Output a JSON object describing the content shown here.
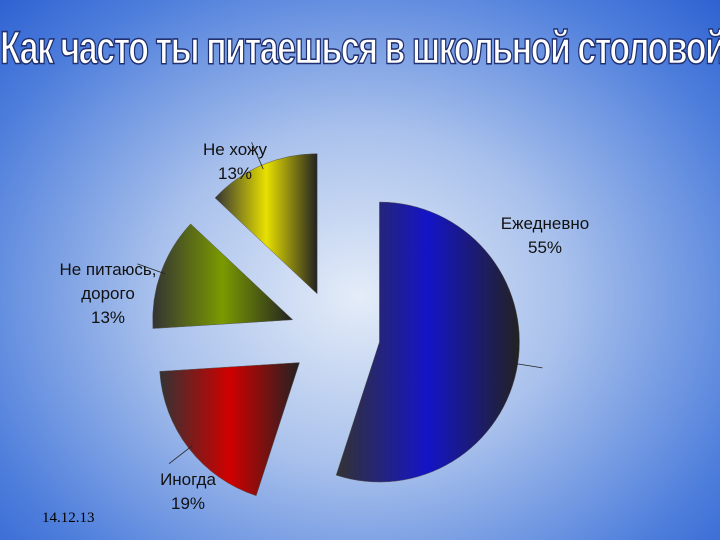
{
  "chart_data": {
    "type": "pie",
    "title": "Как часто ты питаешься в школьной столовой?",
    "categories": [
      "Ежедневно",
      "Иногда",
      "Не питаюсь, дорого",
      "Не хожу"
    ],
    "values": [
      55,
      19,
      13,
      13
    ],
    "value_labels": [
      "55%",
      "19%",
      "13%",
      "13%"
    ],
    "colors": [
      "#1414c8",
      "#d00000",
      "#7a9a00",
      "#e8e000"
    ]
  },
  "footer": {
    "date": "14.12.13"
  }
}
